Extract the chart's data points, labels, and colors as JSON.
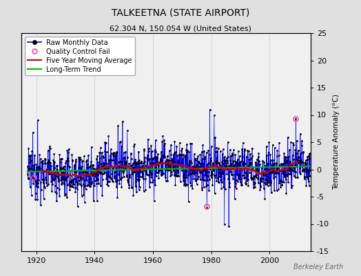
{
  "title": "TALKEETNA (STATE AIRPORT)",
  "subtitle": "62.304 N, 150.054 W (United States)",
  "ylabel": "Temperature Anomaly (°C)",
  "watermark": "Berkeley Earth",
  "year_start": 1917,
  "year_end": 2014,
  "ylim": [
    -15,
    25
  ],
  "yticks": [
    -15,
    -10,
    -5,
    0,
    5,
    10,
    15,
    20,
    25
  ],
  "xticks": [
    1920,
    1940,
    1960,
    1980,
    2000
  ],
  "xlim": [
    1915,
    2014
  ],
  "fig_bg": "#e0e0e0",
  "plot_bg": "#f0f0f0",
  "raw_line_color": "#0000ff",
  "raw_dot_color": "#000000",
  "moving_avg_color": "#cc0000",
  "trend_color": "#00bb00",
  "qc_fail_color": "#ff44aa",
  "grid_color": "#cccccc",
  "legend_labels": [
    "Raw Monthly Data",
    "Quality Control Fail",
    "Five Year Moving Average",
    "Long-Term Trend"
  ]
}
